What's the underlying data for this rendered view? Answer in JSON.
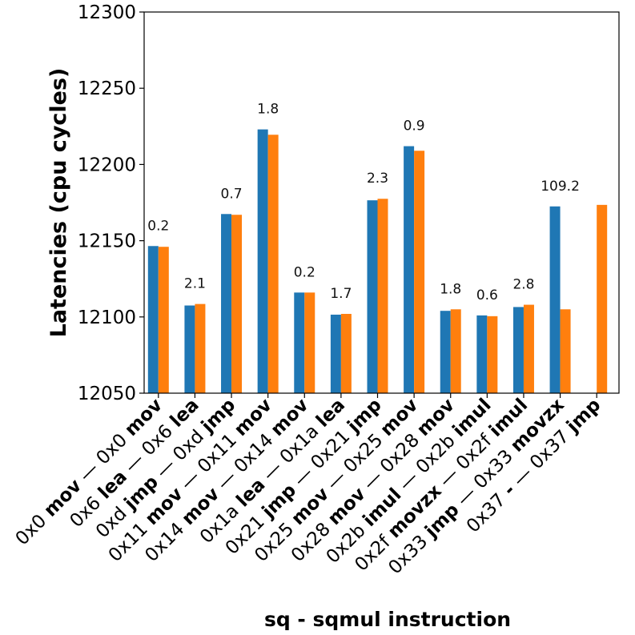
{
  "chart_data": {
    "type": "bar",
    "title": "",
    "xlabel": "sq - sqmul instruction",
    "ylabel": "Latencies (cpu cycles)",
    "ylim": [
      12050,
      12300
    ],
    "yticks": [
      12050,
      12100,
      12150,
      12200,
      12250,
      12300
    ],
    "categories": [
      {
        "prefix": "0x0 ",
        "bold1": "mov",
        "mid": " — 0x0 ",
        "bold2": "mov"
      },
      {
        "prefix": "0x6 ",
        "bold1": "lea",
        "mid": " — 0x6 ",
        "bold2": "lea"
      },
      {
        "prefix": "0xd ",
        "bold1": "jmp",
        "mid": " — 0xd ",
        "bold2": "jmp"
      },
      {
        "prefix": "0x11 ",
        "bold1": "mov",
        "mid": " — 0x11 ",
        "bold2": "mov"
      },
      {
        "prefix": "0x14 ",
        "bold1": "mov",
        "mid": " — 0x14 ",
        "bold2": "mov"
      },
      {
        "prefix": "0x1a ",
        "bold1": "lea",
        "mid": " — 0x1a ",
        "bold2": "lea"
      },
      {
        "prefix": "0x21 ",
        "bold1": "jmp",
        "mid": " — 0x21 ",
        "bold2": "jmp"
      },
      {
        "prefix": "0x25 ",
        "bold1": "mov",
        "mid": " — 0x25 ",
        "bold2": "mov"
      },
      {
        "prefix": "0x28 ",
        "bold1": "mov",
        "mid": " — 0x28 ",
        "bold2": "mov"
      },
      {
        "prefix": "0x2b ",
        "bold1": "imul",
        "mid": " — 0x2b ",
        "bold2": "imul"
      },
      {
        "prefix": "0x2f ",
        "bold1": "movzx",
        "mid": " — 0x2f ",
        "bold2": "imul"
      },
      {
        "prefix": "0x33 ",
        "bold1": "jmp",
        "mid": " — 0x33 ",
        "bold2": "movzx"
      },
      {
        "prefix": "0x37 ",
        "bold1": "-",
        "mid": " — 0x37 ",
        "bold2": "jmp"
      }
    ],
    "series": [
      {
        "name": "sq",
        "color": "#1f77b4",
        "values": [
          12146.5,
          12107.5,
          12167.5,
          12223,
          12116,
          12101.5,
          12176.5,
          12212,
          12104,
          12101,
          12106.5,
          12172.5,
          null
        ]
      },
      {
        "name": "sqmul",
        "color": "#ff7f0e",
        "values": [
          12146,
          12108.5,
          12167,
          12219.5,
          12116,
          12102,
          12177.5,
          12209,
          12105,
          12100.5,
          12108,
          12105,
          12173.5
        ]
      }
    ],
    "data_labels": [
      "0.2",
      "2.1",
      "0.7",
      "1.8",
      "0.2",
      "1.7",
      "2.3",
      "0.9",
      "1.8",
      "0.6",
      "2.8",
      "109.2",
      ""
    ]
  }
}
